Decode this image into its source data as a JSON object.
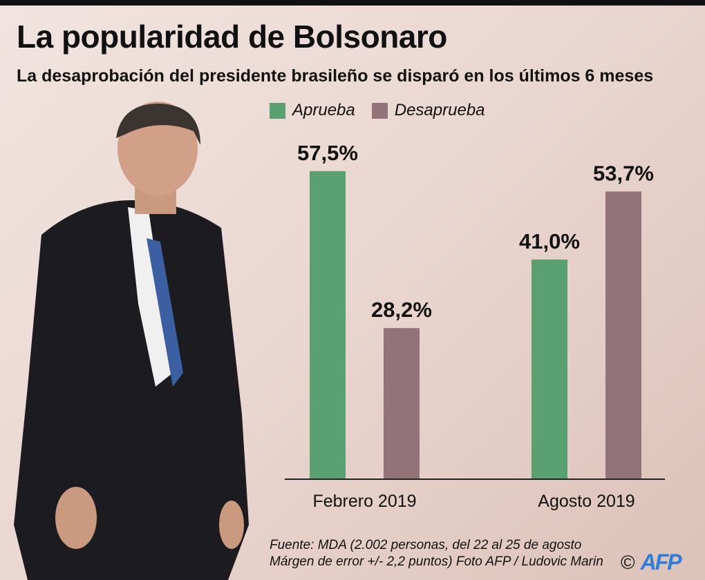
{
  "title": "La popularidad de Bolsonaro",
  "subtitle": "La desaprobación del presidente brasileño se disparó en los últimos 6 meses",
  "colors": {
    "aprueba": "#5aa172",
    "desaprueba": "#92737a",
    "afp": "#2b7fd9"
  },
  "chart_data": {
    "type": "bar",
    "categories": [
      "Febrero 2019",
      "Agosto 2019"
    ],
    "series": [
      {
        "name": "Aprueba",
        "values": [
          57.5,
          41.0
        ],
        "labels": [
          "57,5%",
          "41,0%"
        ]
      },
      {
        "name": "Desaprueba",
        "values": [
          28.2,
          53.7
        ],
        "labels": [
          "28,2%",
          "53,7%"
        ]
      }
    ],
    "ylim": [
      0,
      70
    ],
    "grid": false,
    "legend": "top"
  },
  "footer": {
    "line1": "Fuente: MDA (2.002 personas, del 22 al 25 de agosto",
    "line2": "Márgen de error +/- 2,2 puntos) Foto AFP / Ludovic Marin",
    "copyright": "©",
    "logo": "AFP"
  }
}
